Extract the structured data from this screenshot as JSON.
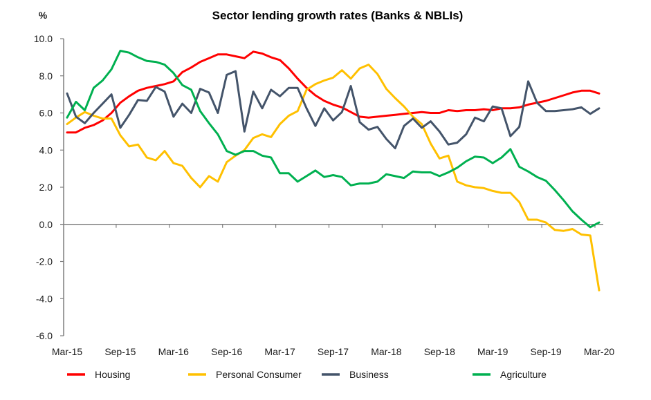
{
  "chart_data": {
    "type": "line",
    "title": "Sector lending growth rates (Banks & NBLIs)",
    "ylabel": "%",
    "xlabel": "",
    "ylim": [
      -6.0,
      10.0
    ],
    "yticks": [
      "10.0",
      "8.0",
      "6.0",
      "4.0",
      "2.0",
      "0.0",
      "-2.0",
      "-4.0",
      "-6.0"
    ],
    "ytick_values": [
      10,
      8,
      6,
      4,
      2,
      0,
      -2,
      -4,
      -6
    ],
    "xtick_labels": [
      "Mar-15",
      "Sep-15",
      "Mar-16",
      "Sep-16",
      "Mar-17",
      "Sep-17",
      "Mar-18",
      "Sep-18",
      "Mar-19",
      "Sep-19",
      "Mar-20"
    ],
    "x_frequency": "monthly",
    "x_start": "Mar-15",
    "x_end": "Mar-20",
    "grid": false,
    "legend_position": "bottom",
    "series": [
      {
        "name": "Housing",
        "color": "#ff0000",
        "values": [
          4.95,
          4.95,
          5.2,
          5.35,
          5.6,
          6.0,
          6.55,
          6.9,
          7.2,
          7.35,
          7.45,
          7.55,
          7.7,
          8.2,
          8.45,
          8.75,
          8.95,
          9.15,
          9.15,
          9.05,
          8.95,
          9.3,
          9.2,
          9.0,
          8.85,
          8.4,
          7.85,
          7.35,
          6.95,
          6.65,
          6.45,
          6.3,
          6.05,
          5.8,
          5.75,
          5.8,
          5.85,
          5.9,
          5.95,
          6.0,
          6.05,
          6.0,
          6.0,
          6.15,
          6.1,
          6.15,
          6.15,
          6.2,
          6.15,
          6.25,
          6.25,
          6.3,
          6.45,
          6.55,
          6.65,
          6.8,
          6.95,
          7.1,
          7.2,
          7.2,
          7.05
        ]
      },
      {
        "name": "Personal Consumer",
        "color": "#ffc000",
        "values": [
          5.4,
          5.75,
          6.05,
          5.85,
          5.7,
          5.7,
          4.8,
          4.2,
          4.3,
          3.6,
          3.45,
          3.95,
          3.3,
          3.15,
          2.5,
          2.0,
          2.6,
          2.3,
          3.35,
          3.7,
          4.0,
          4.65,
          4.85,
          4.7,
          5.4,
          5.85,
          6.1,
          7.25,
          7.55,
          7.75,
          7.9,
          8.3,
          7.85,
          8.4,
          8.6,
          8.1,
          7.3,
          6.8,
          6.35,
          5.8,
          5.4,
          4.35,
          3.55,
          3.7,
          2.3,
          2.1,
          2.0,
          1.95,
          1.8,
          1.7,
          1.7,
          1.2,
          0.25,
          0.25,
          0.1,
          -0.3,
          -0.35,
          -0.25,
          -0.55,
          -0.6,
          -3.55
        ]
      },
      {
        "name": "Business",
        "color": "#44546a",
        "values": [
          7.05,
          5.8,
          5.45,
          6.0,
          6.5,
          7.0,
          5.2,
          5.9,
          6.7,
          6.65,
          7.4,
          7.15,
          5.8,
          6.5,
          6.0,
          7.3,
          7.1,
          6.0,
          8.05,
          8.25,
          5.0,
          7.15,
          6.25,
          7.25,
          6.9,
          7.35,
          7.35,
          6.25,
          5.3,
          6.25,
          5.6,
          6.05,
          7.45,
          5.5,
          5.1,
          5.25,
          4.6,
          4.1,
          5.3,
          5.7,
          5.2,
          5.55,
          5.0,
          4.3,
          4.4,
          4.85,
          5.75,
          5.55,
          6.35,
          6.25,
          4.75,
          5.25,
          7.7,
          6.55,
          6.1,
          6.1,
          6.15,
          6.2,
          6.3,
          5.95,
          6.25
        ]
      },
      {
        "name": "Agriculture",
        "color": "#00b050",
        "values": [
          5.75,
          6.6,
          6.15,
          7.35,
          7.75,
          8.35,
          9.35,
          9.25,
          9.0,
          8.8,
          8.75,
          8.6,
          8.15,
          7.5,
          7.25,
          6.1,
          5.45,
          4.85,
          3.95,
          3.75,
          3.95,
          3.95,
          3.7,
          3.6,
          2.75,
          2.75,
          2.3,
          2.6,
          2.9,
          2.55,
          2.65,
          2.55,
          2.1,
          2.2,
          2.2,
          2.3,
          2.7,
          2.6,
          2.5,
          2.85,
          2.8,
          2.8,
          2.6,
          2.8,
          3.05,
          3.4,
          3.65,
          3.6,
          3.3,
          3.6,
          4.05,
          3.1,
          2.85,
          2.55,
          2.35,
          1.85,
          1.3,
          0.7,
          0.25,
          -0.15,
          0.1
        ]
      }
    ]
  }
}
